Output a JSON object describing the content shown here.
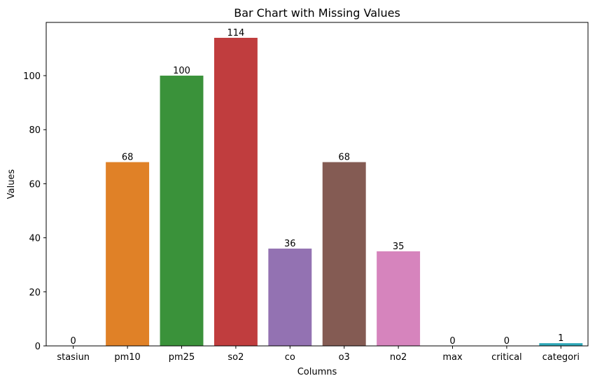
{
  "chart_data": {
    "type": "bar",
    "title": "Bar Chart with Missing Values",
    "xlabel": "Columns",
    "ylabel": "Values",
    "categories": [
      "stasiun",
      "pm10",
      "pm25",
      "so2",
      "co",
      "o3",
      "no2",
      "max",
      "critical",
      "categori"
    ],
    "values": [
      0,
      68,
      100,
      114,
      36,
      68,
      35,
      0,
      0,
      1
    ],
    "colors": [
      "#1f77b4",
      "#e08127",
      "#3a923a",
      "#c03d3e",
      "#9372b2",
      "#845b53",
      "#d684bd",
      "#7f7f7f",
      "#a9aa35",
      "#2ea8b8"
    ],
    "ylim": [
      0,
      119.7
    ],
    "yticks": [
      0,
      20,
      40,
      60,
      80,
      100
    ],
    "grid": false,
    "legend": "none"
  }
}
